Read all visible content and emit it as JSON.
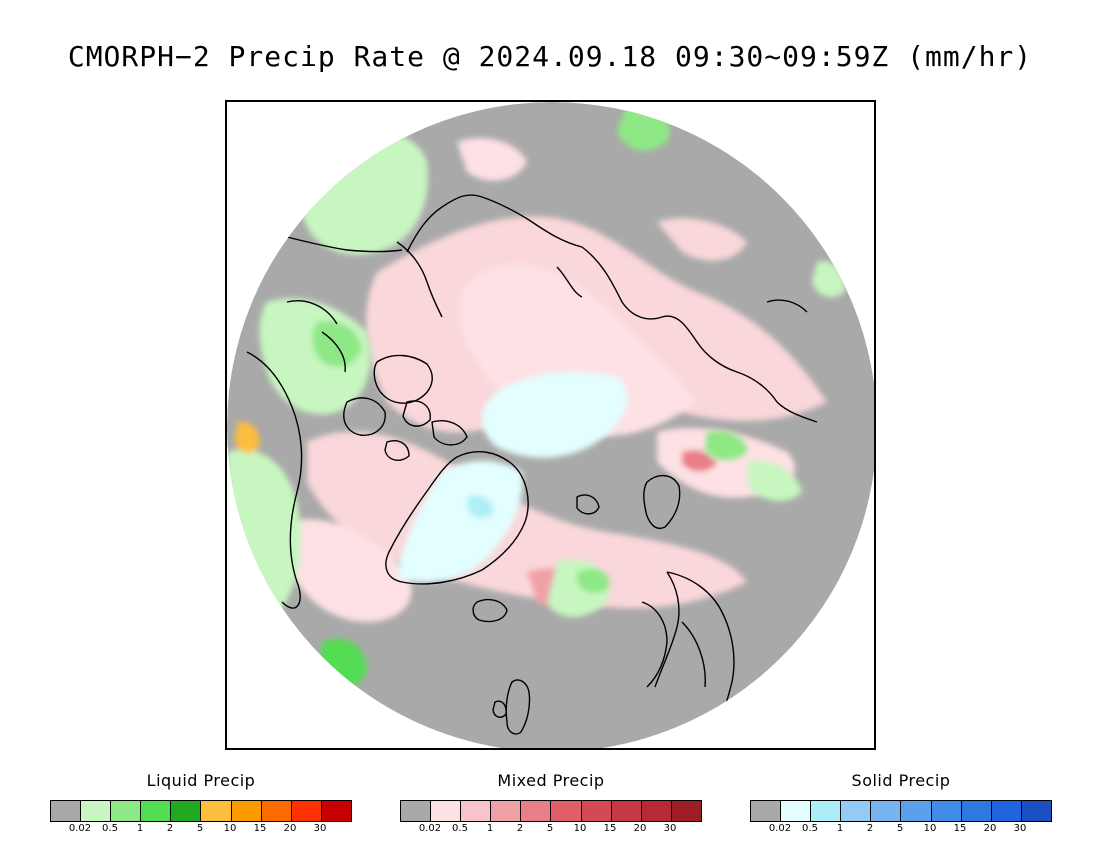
{
  "title": "CMORPH−2 Precip Rate @ 2024.09.18 09:30~09:59Z (mm/hr)",
  "map": {
    "projection": "north-polar-stereographic",
    "background_color": "#a9a9a9",
    "outside_color": "#ffffff",
    "coastline_color": "#000000"
  },
  "legends": [
    {
      "id": "liquid",
      "title": "Liquid Precip",
      "colors": [
        "#a9a9a9",
        "#c7f6c0",
        "#8ee885",
        "#52dd52",
        "#21aa21",
        "#fdbd3d",
        "#fd9a00",
        "#fd6a00",
        "#fd3000",
        "#c80000"
      ],
      "ticks": [
        "0.02",
        "0.5",
        "1",
        "2",
        "5",
        "10",
        "15",
        "20",
        "30"
      ]
    },
    {
      "id": "mixed",
      "title": "Mixed Precip",
      "colors": [
        "#a9a9a9",
        "#fde1e4",
        "#f9c4c9",
        "#f0a1a8",
        "#e87f86",
        "#df6068",
        "#d24a54",
        "#c53a43",
        "#b52a33",
        "#9e1e26"
      ],
      "ticks": [
        "0.02",
        "0.5",
        "1",
        "2",
        "5",
        "10",
        "15",
        "20",
        "30"
      ]
    },
    {
      "id": "solid",
      "title": "Solid Precip",
      "colors": [
        "#a9a9a9",
        "#e3fefe",
        "#aeeef8",
        "#93cbf6",
        "#77b4f0",
        "#5aa0ec",
        "#418ce8",
        "#2f78e2",
        "#1f64dc",
        "#1c50c2"
      ],
      "ticks": [
        "0.02",
        "0.5",
        "1",
        "2",
        "5",
        "10",
        "15",
        "20",
        "30"
      ]
    }
  ]
}
